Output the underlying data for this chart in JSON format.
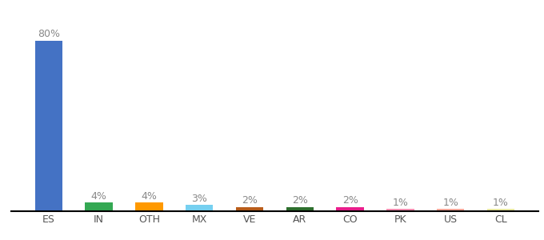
{
  "categories": [
    "ES",
    "IN",
    "OTH",
    "MX",
    "VE",
    "AR",
    "CO",
    "PK",
    "US",
    "CL"
  ],
  "values": [
    80,
    4,
    4,
    3,
    2,
    2,
    2,
    1,
    1,
    1
  ],
  "bar_colors": [
    "#4472c4",
    "#34a853",
    "#ff9900",
    "#76d0f0",
    "#b85c1a",
    "#2d6e2d",
    "#e91e8c",
    "#f48fb1",
    "#f9a89a",
    "#e8e8a0"
  ],
  "labels": [
    "80%",
    "4%",
    "4%",
    "3%",
    "2%",
    "2%",
    "2%",
    "1%",
    "1%",
    "1%"
  ],
  "background_color": "#ffffff",
  "label_color": "#888888",
  "tick_color": "#555555",
  "bottom_line_color": "#000000",
  "label_fontsize": 9,
  "tick_fontsize": 9,
  "ylim": [
    0,
    90
  ],
  "bar_width": 0.55
}
